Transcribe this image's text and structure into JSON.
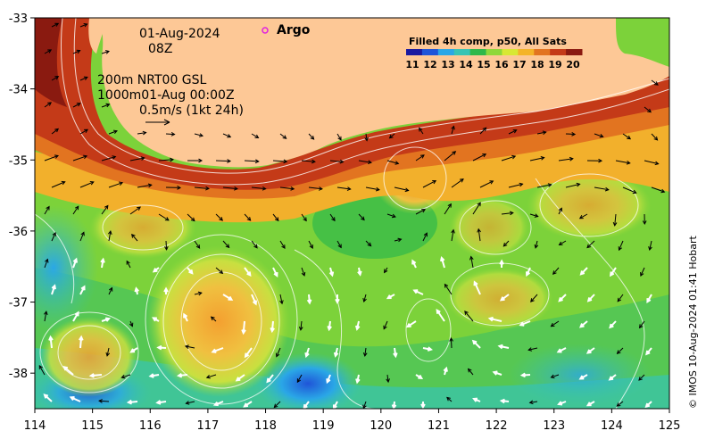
{
  "map": {
    "date": "01-Aug-2024",
    "time": "08Z",
    "argo_label": "Argo",
    "contour_info_line1": "200m  NRT00 GSL",
    "contour_info_line2": "1000m01-Aug 00:00Z",
    "scale_label": "0.5m/s (1kt 24h)",
    "colorbar_title": "Filled 4h comp, p50, All Sats",
    "colorbar_ticks": [
      "11",
      "12",
      "13",
      "14",
      "15",
      "16",
      "17",
      "18",
      "19",
      "20"
    ],
    "colorbar_colors": [
      "#1a1aa0",
      "#1f55d8",
      "#2aa7e6",
      "#38c4b4",
      "#2fb84a",
      "#8fd83a",
      "#d8e834",
      "#f4b428",
      "#e27420",
      "#c43a18",
      "#8a1a10"
    ],
    "credit": "© IMOS 10-Aug-2024 01:41 Hobart",
    "land_color": "#fdc896",
    "argo_marker_color": "#e020e0",
    "x_ticks": [
      "114",
      "115",
      "116",
      "117",
      "118",
      "119",
      "120",
      "121",
      "122",
      "123",
      "124",
      "125"
    ],
    "y_ticks": [
      "-33",
      "-34",
      "-35",
      "-36",
      "-37",
      "-38"
    ]
  },
  "chart_data": {
    "type": "heatmap",
    "title": "Filled 4h comp, p50, All Sats",
    "xlim": [
      114,
      125
    ],
    "ylim": [
      -38.5,
      -33
    ],
    "x_ticks": [
      114,
      115,
      116,
      117,
      118,
      119,
      120,
      121,
      122,
      123,
      124,
      125
    ],
    "y_ticks": [
      -33,
      -34,
      -35,
      -36,
      -37,
      -38
    ],
    "colorbar_range": [
      11,
      20
    ]
  }
}
